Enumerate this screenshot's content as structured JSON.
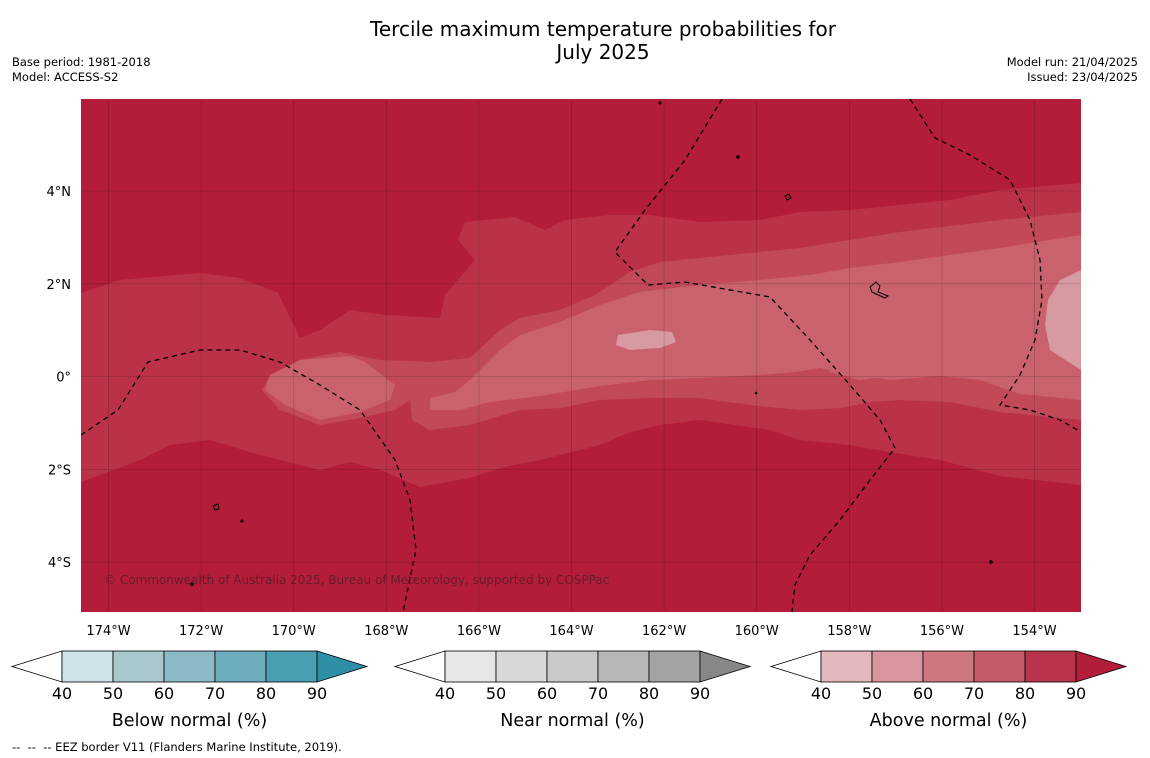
{
  "header": {
    "title": "Tercile maximum temperature probabilities for\nJuly 2025",
    "base_period": "Base period: 1981-2018",
    "model": "Model: ACCESS-S2",
    "model_run": "Model run: 21/04/2025",
    "issued": "Issued: 23/04/2025"
  },
  "map": {
    "lon_labels": [
      "174°W",
      "172°W",
      "170°W",
      "168°W",
      "166°W",
      "164°W",
      "162°W",
      "160°W",
      "158°W",
      "156°W",
      "154°W"
    ],
    "lat_labels": [
      "4°N",
      "2°N",
      "0°",
      "2°S",
      "4°S"
    ],
    "copyright": "© Commonwealth of Australia 2025, Bureau of Meteorology, supported by COSPPac",
    "colors": {
      "above_90": "#b31d3a",
      "above_80": "#bb3248",
      "above_70": "#c24a58",
      "above_60": "#c9626d",
      "above_50": "#d89aa1",
      "border": "#000000"
    }
  },
  "legends": [
    {
      "title": "Below normal (%)",
      "ticks": [
        "40",
        "50",
        "60",
        "70",
        "80",
        "90"
      ],
      "colors": [
        "#cde3e9",
        "#a9c8ce",
        "#8bb9c6",
        "#6eadbd",
        "#4a9fb3",
        "#2e8fa6"
      ]
    },
    {
      "title": "Near normal (%)",
      "ticks": [
        "40",
        "50",
        "60",
        "70",
        "80",
        "90"
      ],
      "colors": [
        "#e6e6e6",
        "#d8d8d8",
        "#c9c9c9",
        "#b7b7b7",
        "#a3a3a3",
        "#878787"
      ]
    },
    {
      "title": "Above normal (%)",
      "ticks": [
        "40",
        "50",
        "60",
        "70",
        "80",
        "90"
      ],
      "colors": [
        "#e3b8bd",
        "#d9959d",
        "#cf7781",
        "#c55a68",
        "#b8344b",
        "#b21d3a"
      ]
    }
  ],
  "footnote": "--  --  -- EEZ border V11 (Flanders Marine Institute, 2019)."
}
